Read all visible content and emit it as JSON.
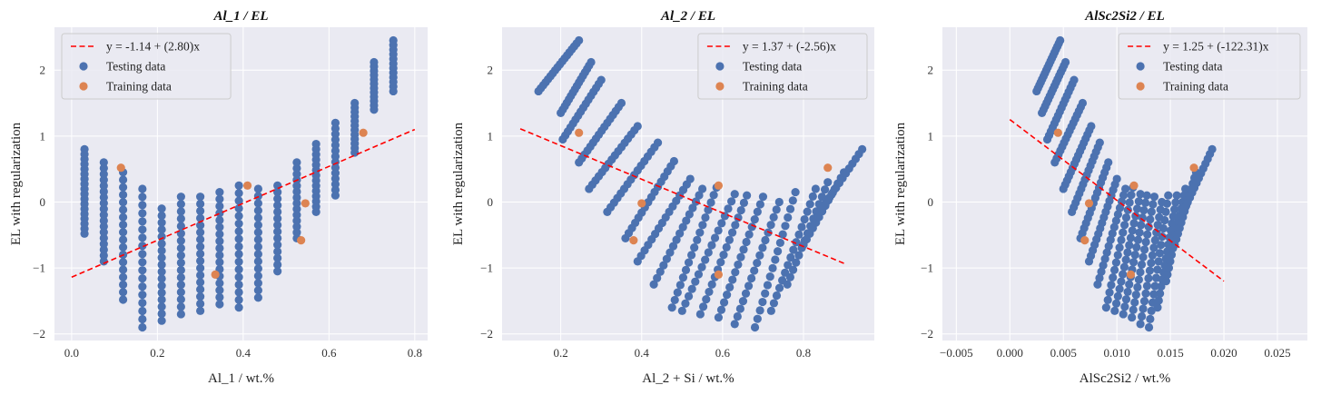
{
  "colors": {
    "background": "#EAEAF2",
    "grid": "#FFFFFF",
    "testing": "#4C72B0",
    "training": "#DD8452",
    "fit_line": "#FF0000"
  },
  "legend_labels": {
    "testing": "Testing data",
    "training": "Training data"
  },
  "chart_data": [
    {
      "type": "scatter",
      "title": "Al_1 / EL",
      "xlabel": "Al_1 / wt.%",
      "ylabel": "EL with regularization",
      "xlim": [
        -0.04,
        0.83
      ],
      "ylim": [
        -2.1,
        2.65
      ],
      "xticks": [
        0.0,
        0.2,
        0.4,
        0.6,
        0.8
      ],
      "xtick_labels": [
        "0.0",
        "0.2",
        "0.4",
        "0.6",
        "0.8"
      ],
      "yticks": [
        -2,
        -1,
        0,
        1,
        2
      ],
      "ytick_labels": [
        "−2",
        "−1",
        "0",
        "1",
        "2"
      ],
      "grid": true,
      "legend_position": "top-left",
      "fit_line": {
        "label": "y = -1.14 + (2.80)x",
        "x": [
          0.0,
          0.8
        ],
        "y": [
          -1.14,
          1.1
        ],
        "style": "dashed"
      },
      "series": [
        {
          "name": "Testing data",
          "stripes": [
            {
              "x": 0.03,
              "y_top": 0.8,
              "y_bottom": -0.48,
              "n": 18
            },
            {
              "x": 0.075,
              "y_top": 0.6,
              "y_bottom": -0.9,
              "n": 18
            },
            {
              "x": 0.12,
              "y_top": 0.45,
              "y_bottom": -1.48,
              "n": 18
            },
            {
              "x": 0.165,
              "y_top": 0.2,
              "y_bottom": -1.9,
              "n": 18
            },
            {
              "x": 0.21,
              "y_top": -0.1,
              "y_bottom": -1.8,
              "n": 17
            },
            {
              "x": 0.255,
              "y_top": 0.08,
              "y_bottom": -1.7,
              "n": 17
            },
            {
              "x": 0.3,
              "y_top": 0.08,
              "y_bottom": -1.65,
              "n": 17
            },
            {
              "x": 0.345,
              "y_top": 0.15,
              "y_bottom": -1.55,
              "n": 17
            },
            {
              "x": 0.39,
              "y_top": 0.25,
              "y_bottom": -1.6,
              "n": 17
            },
            {
              "x": 0.435,
              "y_top": 0.2,
              "y_bottom": -1.45,
              "n": 16
            },
            {
              "x": 0.48,
              "y_top": 0.25,
              "y_bottom": -1.05,
              "n": 14
            },
            {
              "x": 0.525,
              "y_top": 0.6,
              "y_bottom": -0.55,
              "n": 14
            },
            {
              "x": 0.57,
              "y_top": 0.88,
              "y_bottom": -0.15,
              "n": 14
            },
            {
              "x": 0.615,
              "y_top": 1.2,
              "y_bottom": 0.1,
              "n": 14
            },
            {
              "x": 0.66,
              "y_top": 1.5,
              "y_bottom": 0.75,
              "n": 12
            },
            {
              "x": 0.705,
              "y_top": 2.12,
              "y_bottom": 1.4,
              "n": 12
            },
            {
              "x": 0.75,
              "y_top": 2.45,
              "y_bottom": 1.68,
              "n": 12
            }
          ]
        },
        {
          "name": "Training data",
          "points": [
            [
              0.115,
              0.52
            ],
            [
              0.41,
              0.25
            ],
            [
              0.335,
              -1.1
            ],
            [
              0.535,
              -0.58
            ],
            [
              0.545,
              -0.02
            ],
            [
              0.68,
              1.05
            ]
          ]
        }
      ]
    },
    {
      "type": "scatter",
      "title": "Al_2 / EL",
      "xlabel": "Al_2 + Si / wt.%",
      "ylabel": "EL with regularization",
      "xlim": [
        0.055,
        0.975
      ],
      "ylim": [
        -2.1,
        2.65
      ],
      "xticks": [
        0.2,
        0.4,
        0.6,
        0.8
      ],
      "xtick_labels": [
        "0.2",
        "0.4",
        "0.6",
        "0.8"
      ],
      "yticks": [
        -2,
        -1,
        0,
        1,
        2
      ],
      "ytick_labels": [
        "−2",
        "−1",
        "0",
        "1",
        "2"
      ],
      "grid": true,
      "legend_position": "top-right",
      "fit_line": {
        "label": "y = 1.37 + (-2.56)x",
        "x": [
          0.1,
          0.9
        ],
        "y": [
          1.11,
          -0.93
        ],
        "style": "dashed"
      },
      "series": [
        {
          "name": "Testing data",
          "stripes": [
            {
              "x0": 0.145,
              "y0": 1.68,
              "x1": 0.245,
              "y1": 2.45,
              "n": 18
            },
            {
              "x0": 0.2,
              "y0": 1.35,
              "x1": 0.275,
              "y1": 2.12,
              "n": 16
            },
            {
              "x0": 0.205,
              "y0": 0.95,
              "x1": 0.3,
              "y1": 1.85,
              "n": 16
            },
            {
              "x0": 0.245,
              "y0": 0.6,
              "x1": 0.35,
              "y1": 1.5,
              "n": 16
            },
            {
              "x0": 0.27,
              "y0": 0.2,
              "x1": 0.39,
              "y1": 1.15,
              "n": 16
            },
            {
              "x0": 0.315,
              "y0": -0.15,
              "x1": 0.44,
              "y1": 0.9,
              "n": 16
            },
            {
              "x0": 0.36,
              "y0": -0.55,
              "x1": 0.48,
              "y1": 0.62,
              "n": 16
            },
            {
              "x0": 0.39,
              "y0": -0.9,
              "x1": 0.52,
              "y1": 0.35,
              "n": 16
            },
            {
              "x0": 0.43,
              "y0": -1.25,
              "x1": 0.55,
              "y1": 0.2,
              "n": 16
            },
            {
              "x0": 0.475,
              "y0": -1.6,
              "x1": 0.585,
              "y1": 0.22,
              "n": 17
            },
            {
              "x0": 0.5,
              "y0": -1.65,
              "x1": 0.63,
              "y1": 0.12,
              "n": 17
            },
            {
              "x0": 0.545,
              "y0": -1.7,
              "x1": 0.66,
              "y1": 0.1,
              "n": 17
            },
            {
              "x0": 0.59,
              "y0": -1.75,
              "x1": 0.7,
              "y1": 0.08,
              "n": 17
            },
            {
              "x0": 0.63,
              "y0": -1.85,
              "x1": 0.74,
              "y1": 0.0,
              "n": 17
            },
            {
              "x0": 0.68,
              "y0": -1.9,
              "x1": 0.78,
              "y1": 0.15,
              "n": 17
            },
            {
              "x0": 0.72,
              "y0": -1.65,
              "x1": 0.83,
              "y1": 0.2,
              "n": 17
            },
            {
              "x0": 0.76,
              "y0": -1.25,
              "x1": 0.86,
              "y1": 0.3,
              "n": 15
            },
            {
              "x0": 0.8,
              "y0": -0.65,
              "x1": 0.9,
              "y1": 0.45,
              "n": 14
            },
            {
              "x0": 0.84,
              "y0": -0.15,
              "x1": 0.945,
              "y1": 0.8,
              "n": 14
            }
          ]
        },
        {
          "name": "Training data",
          "points": [
            [
              0.245,
              1.05
            ],
            [
              0.4,
              -0.02
            ],
            [
              0.38,
              -0.58
            ],
            [
              0.59,
              0.25
            ],
            [
              0.59,
              -1.1
            ],
            [
              0.86,
              0.52
            ]
          ]
        }
      ]
    },
    {
      "type": "scatter",
      "title": "AlSc2Si2 / EL",
      "xlabel": "AlSc2Si2 / wt.%",
      "ylabel": "EL with regularization",
      "xlim": [
        -0.0063,
        0.0278
      ],
      "ylim": [
        -2.1,
        2.65
      ],
      "xticks": [
        -0.005,
        0.0,
        0.005,
        0.01,
        0.015,
        0.02,
        0.025
      ],
      "xtick_labels": [
        "−0.005",
        "0.000",
        "0.005",
        "0.010",
        "0.015",
        "0.020",
        "0.025"
      ],
      "yticks": [
        -2,
        -1,
        0,
        1,
        2
      ],
      "ytick_labels": [
        "−2",
        "−1",
        "0",
        "1",
        "2"
      ],
      "grid": true,
      "legend_position": "top-right",
      "fit_line": {
        "label": "y = 1.25 + (-122.31)x",
        "x": [
          0.0,
          0.02
        ],
        "y": [
          1.25,
          -1.2
        ],
        "style": "dashed"
      },
      "series": [
        {
          "name": "Testing data",
          "stripes": [
            {
              "x0": 0.0025,
              "y0": 1.68,
              "x1": 0.0047,
              "y1": 2.45,
              "n": 18
            },
            {
              "x0": 0.003,
              "y0": 1.35,
              "x1": 0.0052,
              "y1": 2.12,
              "n": 16
            },
            {
              "x0": 0.0035,
              "y0": 0.95,
              "x1": 0.006,
              "y1": 1.85,
              "n": 16
            },
            {
              "x0": 0.0042,
              "y0": 0.6,
              "x1": 0.0068,
              "y1": 1.5,
              "n": 16
            },
            {
              "x0": 0.005,
              "y0": 0.2,
              "x1": 0.0076,
              "y1": 1.15,
              "n": 16
            },
            {
              "x0": 0.0058,
              "y0": -0.15,
              "x1": 0.0084,
              "y1": 0.9,
              "n": 16
            },
            {
              "x0": 0.0066,
              "y0": -0.55,
              "x1": 0.0092,
              "y1": 0.6,
              "n": 16
            },
            {
              "x0": 0.0074,
              "y0": -0.9,
              "x1": 0.01,
              "y1": 0.35,
              "n": 16
            },
            {
              "x0": 0.0082,
              "y0": -1.25,
              "x1": 0.0108,
              "y1": 0.2,
              "n": 16
            },
            {
              "x0": 0.009,
              "y0": -1.6,
              "x1": 0.0115,
              "y1": 0.22,
              "n": 17
            },
            {
              "x0": 0.0098,
              "y0": -1.65,
              "x1": 0.0122,
              "y1": 0.12,
              "n": 17
            },
            {
              "x0": 0.0106,
              "y0": -1.7,
              "x1": 0.0128,
              "y1": 0.1,
              "n": 17
            },
            {
              "x0": 0.0114,
              "y0": -1.75,
              "x1": 0.0135,
              "y1": 0.08,
              "n": 17
            },
            {
              "x0": 0.0122,
              "y0": -1.85,
              "x1": 0.0142,
              "y1": 0.0,
              "n": 17
            },
            {
              "x0": 0.013,
              "y0": -1.9,
              "x1": 0.0148,
              "y1": 0.1,
              "n": 17
            },
            {
              "x0": 0.0138,
              "y0": -1.6,
              "x1": 0.0156,
              "y1": 0.1,
              "n": 17
            },
            {
              "x0": 0.0146,
              "y0": -1.2,
              "x1": 0.0164,
              "y1": 0.2,
              "n": 15
            },
            {
              "x0": 0.0154,
              "y0": -0.65,
              "x1": 0.0174,
              "y1": 0.45,
              "n": 14
            },
            {
              "x0": 0.0162,
              "y0": -0.15,
              "x1": 0.0189,
              "y1": 0.8,
              "n": 14
            }
          ]
        },
        {
          "name": "Training data",
          "points": [
            [
              0.0045,
              1.05
            ],
            [
              0.0074,
              -0.02
            ],
            [
              0.007,
              -0.58
            ],
            [
              0.0116,
              0.25
            ],
            [
              0.0113,
              -1.1
            ],
            [
              0.0172,
              0.52
            ]
          ]
        }
      ]
    }
  ]
}
